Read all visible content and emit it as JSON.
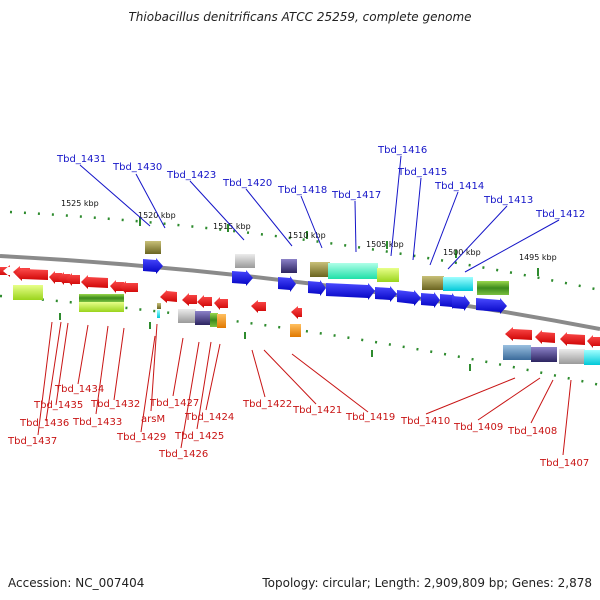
{
  "title": "Thiobacillus denitrificans ATCC 25259, complete genome",
  "accession_text": "Accession: NC_007404",
  "summary_text": "Topology: circular; Length: 2,909,809 bp; Genes: 2,878",
  "colors": {
    "forward_label": "#1515c8",
    "reverse_label": "#c81414",
    "forward_gene": "#0000dd",
    "reverse_gene": "#ee0000",
    "backbone": "#8a8a8a",
    "tick_dots": "#228b22"
  },
  "scale_labels": [
    "1525 kbp",
    "1520 kbp",
    "1515 kbp",
    "1510 kbp",
    "1505 kbp",
    "1500 kbp",
    "1495 kbp"
  ],
  "forward_genes": [
    "Tbd_1431",
    "Tbd_1430",
    "Tbd_1423",
    "Tbd_1420",
    "Tbd_1418",
    "Tbd_1417",
    "Tbd_1416",
    "Tbd_1415",
    "Tbd_1414",
    "Tbd_1413",
    "Tbd_1412"
  ],
  "reverse_genes": [
    "Tbd_1437",
    "Tbd_1436",
    "Tbd_1435",
    "Tbd_1434",
    "Tbd_1433",
    "Tbd_1432",
    "arsM",
    "Tbd_1429",
    "Tbd_1427",
    "Tbd_1426",
    "Tbd_1425",
    "Tbd_1424",
    "Tbd_1422",
    "Tbd_1421",
    "Tbd_1419",
    "Tbd_1410",
    "Tbd_1409",
    "Tbd_1408",
    "Tbd_1407"
  ]
}
